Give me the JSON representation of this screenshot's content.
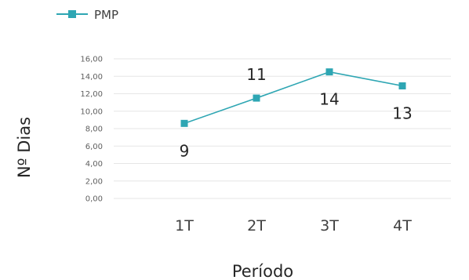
{
  "chart_data": {
    "type": "line",
    "categories": [
      "1T",
      "2T",
      "3T",
      "4T"
    ],
    "series": [
      {
        "name": "PMP",
        "values": [
          8.6,
          11.5,
          14.5,
          12.9
        ],
        "data_labels": [
          "9",
          "11",
          "14",
          "13"
        ]
      }
    ],
    "ylim": [
      0,
      16
    ],
    "y_ticks": [
      "0,00",
      "2,00",
      "4,00",
      "6,00",
      "8,00",
      "10,00",
      "12,00",
      "14,00",
      "16,00"
    ],
    "xlabel": "Período",
    "ylabel": "Nº Dias",
    "legend": "top-left",
    "grid": true,
    "colors": {
      "series": "#2ea6b3",
      "grid": "#e6e6e6"
    }
  }
}
